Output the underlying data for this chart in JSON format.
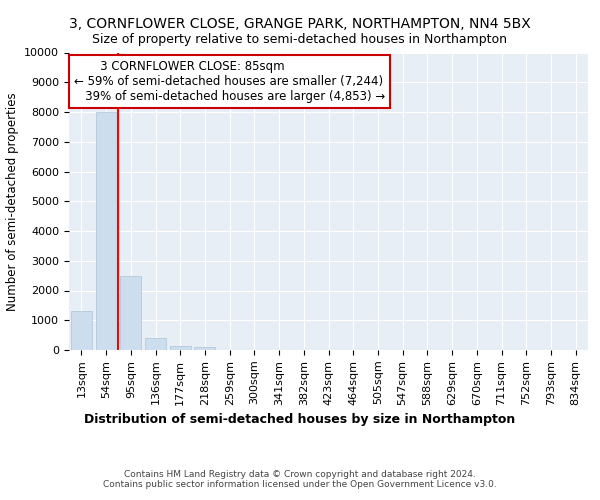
{
  "title1": "3, CORNFLOWER CLOSE, GRANGE PARK, NORTHAMPTON, NN4 5BX",
  "title2": "Size of property relative to semi-detached houses in Northampton",
  "xlabel": "Distribution of semi-detached houses by size in Northampton",
  "ylabel": "Number of semi-detached properties",
  "footer": "Contains HM Land Registry data © Crown copyright and database right 2024.\nContains public sector information licensed under the Open Government Licence v3.0.",
  "categories": [
    "13sqm",
    "54sqm",
    "95sqm",
    "136sqm",
    "177sqm",
    "218sqm",
    "259sqm",
    "300sqm",
    "341sqm",
    "382sqm",
    "423sqm",
    "464sqm",
    "505sqm",
    "547sqm",
    "588sqm",
    "629sqm",
    "670sqm",
    "711sqm",
    "752sqm",
    "793sqm",
    "834sqm"
  ],
  "values": [
    1300,
    8000,
    2500,
    400,
    150,
    100,
    0,
    0,
    0,
    0,
    0,
    0,
    0,
    0,
    0,
    0,
    0,
    0,
    0,
    0,
    0
  ],
  "bar_color": "#ccdded",
  "bar_edge_color": "#aac4d8",
  "redline_x": 1.5,
  "annotation_line1": "3 CORNFLOWER CLOSE: 85sqm",
  "annotation_line2": "← 59% of semi-detached houses are smaller (7,244)",
  "annotation_line3": "39% of semi-detached houses are larger (4,853) →",
  "ylim": [
    0,
    10000
  ],
  "yticks": [
    0,
    1000,
    2000,
    3000,
    4000,
    5000,
    6000,
    7000,
    8000,
    9000,
    10000
  ],
  "bg_color": "#e8eef5",
  "grid_color": "#ffffff",
  "annotation_box_facecolor": "#ffffff",
  "annotation_box_edgecolor": "#cc0000",
  "title1_fontsize": 10,
  "title2_fontsize": 9,
  "xlabel_fontsize": 9,
  "ylabel_fontsize": 8.5,
  "tick_fontsize": 8,
  "footer_fontsize": 6.5,
  "annotation_fontsize": 8.5
}
